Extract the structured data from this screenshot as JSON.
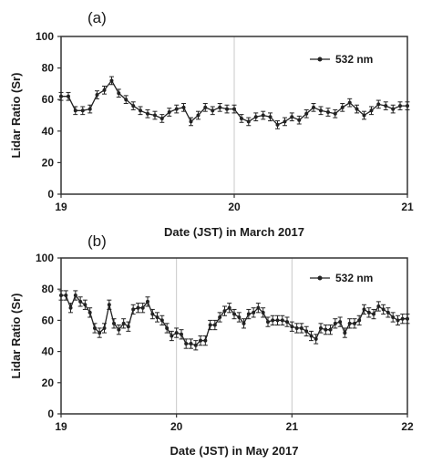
{
  "chart_data": [
    {
      "type": "line",
      "panel_label": "(a)",
      "xlabel": "Date (JST) in March 2017",
      "ylabel": "Lidar Ratio (Sr)",
      "xlim": [
        19,
        21
      ],
      "ylim": [
        0,
        100
      ],
      "x_ticks": [
        "19",
        "20",
        "21"
      ],
      "y_ticks": [
        "0",
        "20",
        "40",
        "60",
        "80",
        "100"
      ],
      "day_dividers": [
        20
      ],
      "legend": {
        "position": "top-right"
      },
      "error_bar": 2.5,
      "series": [
        {
          "name": "532 nm",
          "color": "#222222",
          "x": [
            19.0,
            19.042,
            19.083,
            19.125,
            19.167,
            19.208,
            19.25,
            19.292,
            19.333,
            19.375,
            19.417,
            19.458,
            19.5,
            19.542,
            19.583,
            19.625,
            19.667,
            19.708,
            19.75,
            19.792,
            19.833,
            19.875,
            19.917,
            19.958,
            20.0,
            20.042,
            20.083,
            20.125,
            20.167,
            20.208,
            20.25,
            20.292,
            20.333,
            20.375,
            20.417,
            20.458,
            20.5,
            20.542,
            20.583,
            20.625,
            20.667,
            20.708,
            20.75,
            20.792,
            20.833,
            20.875,
            20.917,
            20.958,
            21.0
          ],
          "y": [
            62,
            62,
            53,
            53,
            54,
            63,
            66,
            72,
            64,
            60,
            56,
            53,
            51,
            50,
            48,
            52,
            54,
            55,
            46,
            50,
            55,
            53,
            55,
            54,
            54,
            48,
            46,
            49,
            50,
            49,
            44,
            46,
            49,
            47,
            51,
            55,
            53,
            52,
            51,
            55,
            58,
            54,
            50,
            53,
            57,
            56,
            54,
            56,
            56
          ]
        }
      ]
    },
    {
      "type": "line",
      "panel_label": "(b)",
      "xlabel": "Date (JST) in May 2017",
      "ylabel": "Lidar Ratio (Sr)",
      "xlim": [
        19,
        22
      ],
      "ylim": [
        0,
        100
      ],
      "x_ticks": [
        "19",
        "20",
        "21",
        "22"
      ],
      "y_ticks": [
        "0",
        "20",
        "40",
        "60",
        "80",
        "100"
      ],
      "day_dividers": [
        20,
        21
      ],
      "legend": {
        "position": "top-right"
      },
      "error_bar": 3,
      "series": [
        {
          "name": "532 nm",
          "color": "#222222",
          "x": [
            19.0,
            19.042,
            19.083,
            19.125,
            19.167,
            19.208,
            19.25,
            19.292,
            19.333,
            19.375,
            19.417,
            19.458,
            19.5,
            19.542,
            19.583,
            19.625,
            19.667,
            19.708,
            19.75,
            19.792,
            19.833,
            19.875,
            19.917,
            19.958,
            20.0,
            20.042,
            20.083,
            20.125,
            20.167,
            20.208,
            20.25,
            20.292,
            20.333,
            20.375,
            20.417,
            20.458,
            20.5,
            20.542,
            20.583,
            20.625,
            20.667,
            20.708,
            20.75,
            20.792,
            20.833,
            20.875,
            20.917,
            20.958,
            21.0,
            21.042,
            21.083,
            21.125,
            21.167,
            21.208,
            21.25,
            21.292,
            21.333,
            21.375,
            21.417,
            21.458,
            21.5,
            21.542,
            21.583,
            21.625,
            21.667,
            21.708,
            21.75,
            21.792,
            21.833,
            21.875,
            21.917,
            21.958,
            22.0
          ],
          "y": [
            76,
            76,
            68,
            76,
            72,
            70,
            65,
            55,
            52,
            55,
            70,
            58,
            54,
            58,
            56,
            67,
            68,
            68,
            72,
            64,
            62,
            60,
            55,
            50,
            52,
            51,
            45,
            45,
            44,
            47,
            47,
            57,
            57,
            62,
            66,
            68,
            64,
            62,
            58,
            64,
            65,
            68,
            65,
            59,
            60,
            60,
            60,
            59,
            56,
            55,
            55,
            53,
            50,
            48,
            55,
            54,
            54,
            58,
            59,
            52,
            58,
            58,
            60,
            67,
            65,
            64,
            69,
            67,
            65,
            62,
            60,
            61,
            61
          ]
        }
      ]
    }
  ]
}
